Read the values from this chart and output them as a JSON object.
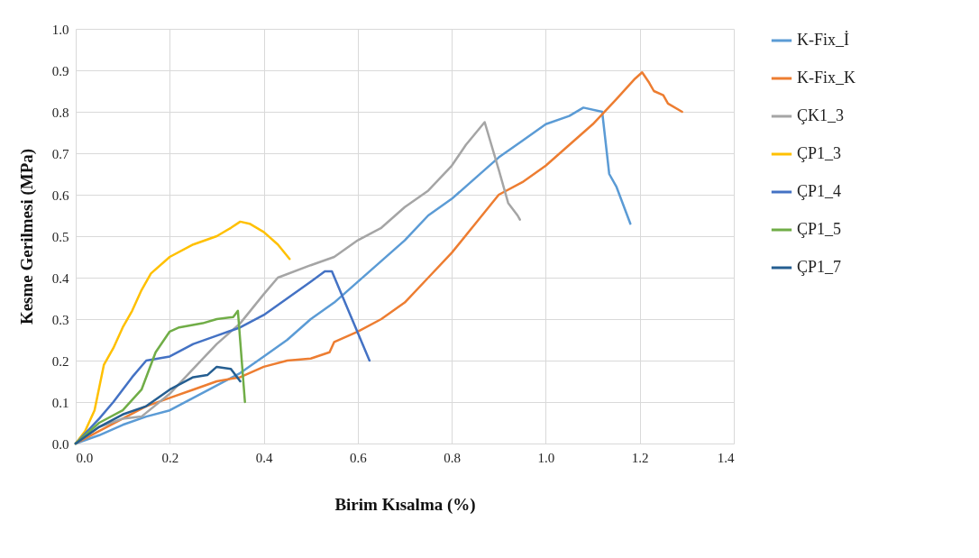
{
  "chart_data": {
    "type": "line",
    "xlabel": "Birim Kısalma (%)",
    "ylabel": "Kesme Gerilmesi (MPa)",
    "xlim": [
      0,
      1.4
    ],
    "ylim": [
      0,
      1.0
    ],
    "xticks": [
      {
        "value": 0,
        "label": "0.0"
      },
      0.2,
      0.4,
      0.6,
      0.8,
      {
        "value": 1,
        "label": "1.0"
      },
      1.2,
      1.4
    ],
    "yticks": [
      {
        "value": 0,
        "label": "0.0"
      },
      0.1,
      0.2,
      0.3,
      0.4,
      0.5,
      0.6,
      0.7,
      0.8,
      0.9,
      {
        "value": 1,
        "label": "1.0"
      }
    ],
    "grid": true,
    "legend": "right",
    "marker": "none",
    "series": [
      {
        "name": "K-Fix_İ",
        "color": "#5b9bd5",
        "x": [
          0,
          0.05,
          0.1,
          0.15,
          0.2,
          0.25,
          0.3,
          0.35,
          0.4,
          0.45,
          0.5,
          0.55,
          0.6,
          0.65,
          0.7,
          0.75,
          0.8,
          0.85,
          0.9,
          0.95,
          1.0,
          1.05,
          1.08,
          1.12,
          1.135,
          1.15,
          1.18
        ],
        "values": [
          0,
          0.02,
          0.045,
          0.065,
          0.08,
          0.11,
          0.14,
          0.17,
          0.21,
          0.25,
          0.3,
          0.34,
          0.39,
          0.44,
          0.49,
          0.55,
          0.59,
          0.64,
          0.69,
          0.73,
          0.77,
          0.79,
          0.81,
          0.8,
          0.65,
          0.62,
          0.53
        ]
      },
      {
        "name": "K-Fix_K",
        "color": "#ed7d31",
        "x": [
          0,
          0.05,
          0.1,
          0.15,
          0.2,
          0.25,
          0.3,
          0.35,
          0.4,
          0.45,
          0.5,
          0.54,
          0.55,
          0.6,
          0.65,
          0.7,
          0.75,
          0.8,
          0.85,
          0.9,
          0.95,
          1.0,
          1.05,
          1.1,
          1.15,
          1.19,
          1.205,
          1.22,
          1.23,
          1.25,
          1.26,
          1.29
        ],
        "values": [
          0,
          0.03,
          0.06,
          0.09,
          0.11,
          0.13,
          0.15,
          0.16,
          0.185,
          0.2,
          0.205,
          0.22,
          0.245,
          0.27,
          0.3,
          0.34,
          0.4,
          0.46,
          0.53,
          0.6,
          0.63,
          0.67,
          0.72,
          0.77,
          0.83,
          0.88,
          0.895,
          0.87,
          0.85,
          0.84,
          0.82,
          0.8
        ]
      },
      {
        "name": "ÇK1_3",
        "color": "#a5a5a5",
        "x": [
          0,
          0.05,
          0.1,
          0.14,
          0.2,
          0.25,
          0.3,
          0.35,
          0.4,
          0.43,
          0.5,
          0.55,
          0.6,
          0.65,
          0.7,
          0.75,
          0.8,
          0.83,
          0.87,
          0.9,
          0.92,
          0.94,
          0.945
        ],
        "values": [
          0,
          0.04,
          0.06,
          0.065,
          0.12,
          0.18,
          0.24,
          0.29,
          0.36,
          0.4,
          0.43,
          0.45,
          0.49,
          0.52,
          0.57,
          0.61,
          0.67,
          0.72,
          0.775,
          0.66,
          0.58,
          0.55,
          0.54
        ]
      },
      {
        "name": "ÇP1_3",
        "color": "#ffc000",
        "x": [
          0,
          0.02,
          0.04,
          0.06,
          0.08,
          0.1,
          0.12,
          0.14,
          0.16,
          0.2,
          0.25,
          0.3,
          0.33,
          0.35,
          0.37,
          0.4,
          0.43,
          0.455
        ],
        "values": [
          0,
          0.03,
          0.08,
          0.19,
          0.23,
          0.28,
          0.32,
          0.37,
          0.41,
          0.45,
          0.48,
          0.5,
          0.52,
          0.535,
          0.53,
          0.51,
          0.48,
          0.445
        ]
      },
      {
        "name": "ÇP1_4",
        "color": "#4472c4",
        "x": [
          0,
          0.05,
          0.08,
          0.12,
          0.15,
          0.2,
          0.25,
          0.3,
          0.35,
          0.4,
          0.45,
          0.5,
          0.53,
          0.545,
          0.625
        ],
        "values": [
          0,
          0.06,
          0.1,
          0.16,
          0.2,
          0.21,
          0.24,
          0.26,
          0.28,
          0.31,
          0.35,
          0.39,
          0.415,
          0.415,
          0.2
        ]
      },
      {
        "name": "ÇP1_5",
        "color": "#70ad47",
        "x": [
          0,
          0.05,
          0.1,
          0.14,
          0.17,
          0.2,
          0.22,
          0.27,
          0.3,
          0.335,
          0.345,
          0.36
        ],
        "values": [
          0,
          0.05,
          0.08,
          0.13,
          0.22,
          0.27,
          0.28,
          0.29,
          0.3,
          0.305,
          0.32,
          0.1
        ]
      },
      {
        "name": "ÇP1_7",
        "color": "#255e91",
        "x": [
          0,
          0.05,
          0.1,
          0.15,
          0.2,
          0.25,
          0.28,
          0.3,
          0.33,
          0.35
        ],
        "values": [
          0,
          0.04,
          0.07,
          0.09,
          0.13,
          0.16,
          0.165,
          0.185,
          0.18,
          0.15
        ]
      }
    ]
  }
}
